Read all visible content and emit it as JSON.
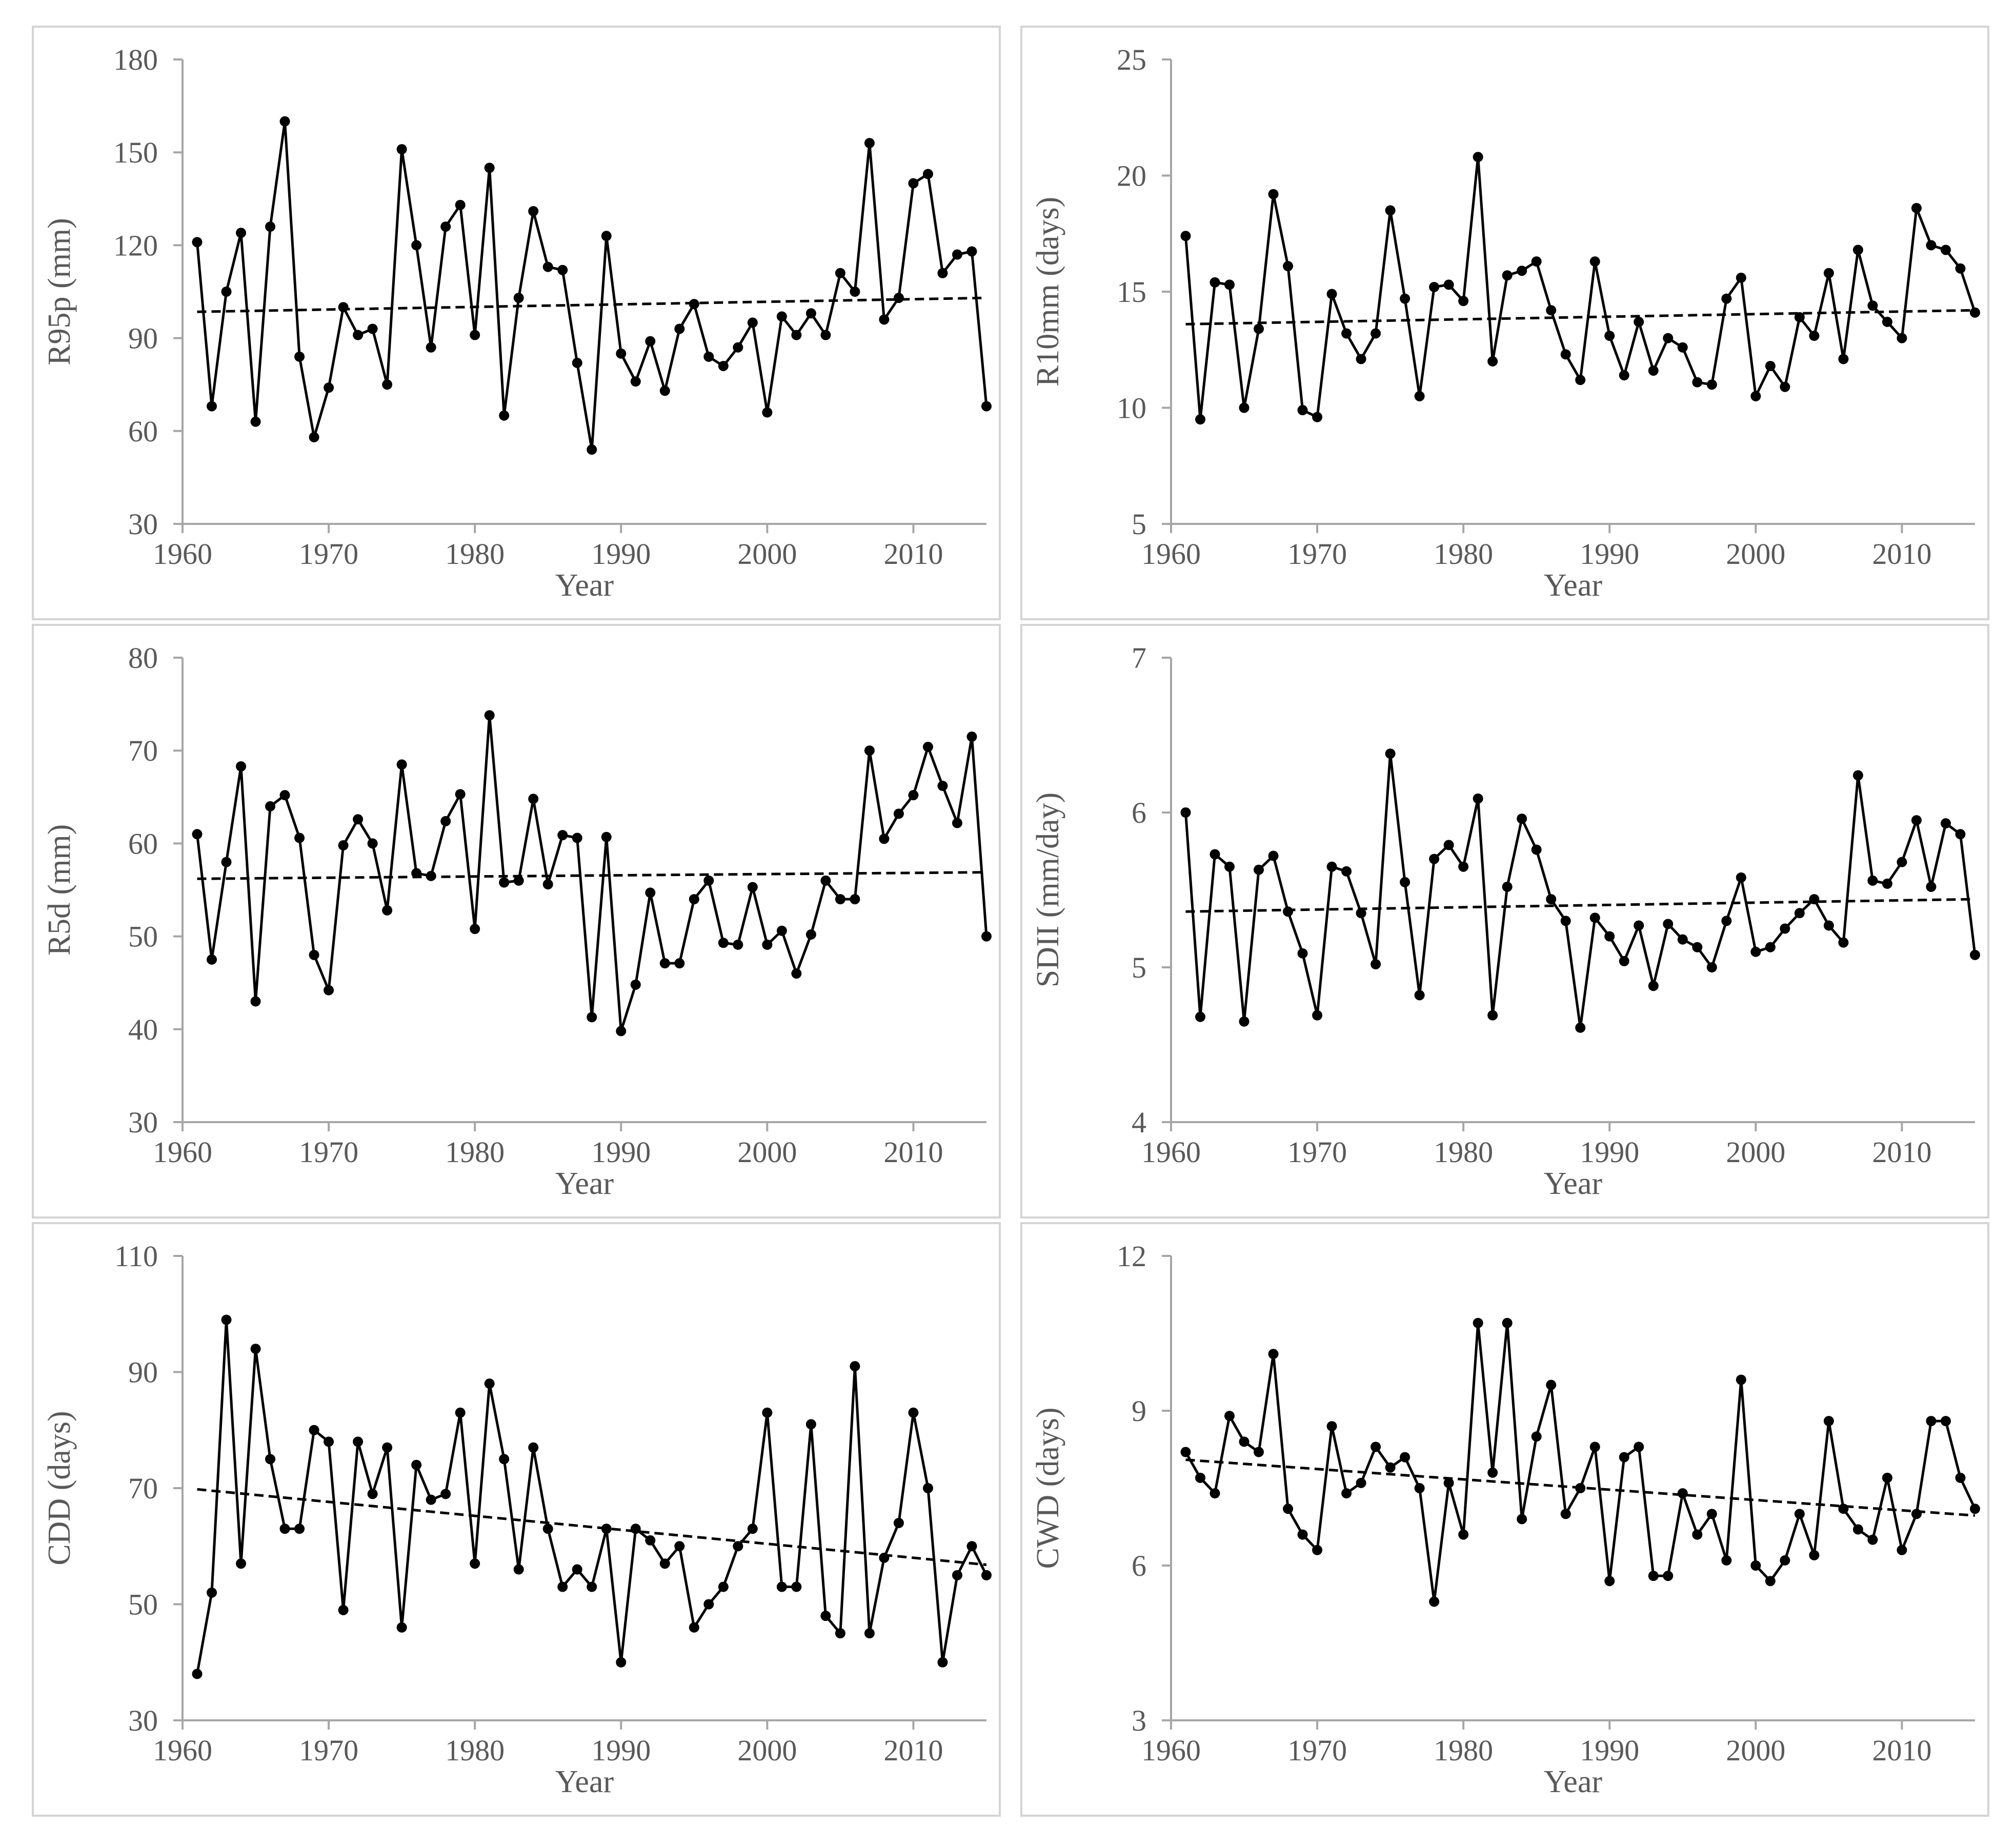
{
  "chart_data": [
    {
      "type": "line",
      "ylabel": "R95p (mm)",
      "xlabel": "Year",
      "xlim": [
        1960,
        2015
      ],
      "ylim": [
        30,
        180
      ],
      "xticks": [
        "1960",
        "1970",
        "1980",
        "1990",
        "2000",
        "2010"
      ],
      "yticks": [
        "30",
        "60",
        "90",
        "120",
        "150",
        "180"
      ],
      "series": [
        {
          "name": "R95p",
          "x": [
            1961,
            1962,
            1963,
            1964,
            1965,
            1966,
            1967,
            1968,
            1969,
            1970,
            1971,
            1972,
            1973,
            1974,
            1975,
            1976,
            1977,
            1978,
            1979,
            1980,
            1981,
            1982,
            1983,
            1984,
            1985,
            1986,
            1987,
            1988,
            1989,
            1990,
            1991,
            1992,
            1993,
            1994,
            1995,
            1996,
            1997,
            1998,
            1999,
            2000,
            2001,
            2002,
            2003,
            2004,
            2005,
            2006,
            2007,
            2008,
            2009,
            2010,
            2011,
            2012,
            2013,
            2014,
            2015
          ],
          "values": [
            121,
            68,
            105,
            124,
            63,
            126,
            160,
            84,
            58,
            74,
            100,
            91,
            93,
            75,
            151,
            120,
            87,
            126,
            133,
            91,
            145,
            65,
            103,
            131,
            113,
            112,
            82,
            54,
            123,
            85,
            76,
            89,
            73,
            93,
            101,
            84,
            81,
            87,
            95,
            66,
            97,
            91,
            98,
            91,
            111,
            105,
            153,
            96,
            103,
            140,
            143,
            111,
            117,
            118,
            68
          ]
        },
        {
          "name": "Trend",
          "style": "dashed",
          "x": [
            1961,
            2015
          ],
          "values": [
            98.5,
            103
          ]
        }
      ]
    },
    {
      "type": "line",
      "ylabel": "R10mm (days)",
      "xlabel": "Year",
      "xlim": [
        1960,
        2015
      ],
      "ylim": [
        5,
        25
      ],
      "xticks": [
        "1960",
        "1970",
        "1980",
        "1990",
        "2000",
        "2010"
      ],
      "yticks": [
        "5",
        "10",
        "15",
        "20",
        "25"
      ],
      "series": [
        {
          "name": "R10mm",
          "x": [
            1961,
            1962,
            1963,
            1964,
            1965,
            1966,
            1967,
            1968,
            1969,
            1970,
            1971,
            1972,
            1973,
            1974,
            1975,
            1976,
            1977,
            1978,
            1979,
            1980,
            1981,
            1982,
            1983,
            1984,
            1985,
            1986,
            1987,
            1988,
            1989,
            1990,
            1991,
            1992,
            1993,
            1994,
            1995,
            1996,
            1997,
            1998,
            1999,
            2000,
            2001,
            2002,
            2003,
            2004,
            2005,
            2006,
            2007,
            2008,
            2009,
            2010,
            2011,
            2012,
            2013,
            2014,
            2015
          ],
          "values": [
            17.4,
            9.5,
            15.4,
            15.3,
            10,
            13.4,
            19.2,
            16.1,
            9.9,
            9.6,
            14.9,
            13.2,
            12.1,
            13.2,
            18.5,
            14.7,
            10.5,
            15.2,
            15.3,
            14.6,
            20.8,
            12,
            15.7,
            15.9,
            16.3,
            14.2,
            12.3,
            11.2,
            16.3,
            13.1,
            11.4,
            13.7,
            11.6,
            13,
            12.6,
            11.1,
            11,
            14.7,
            15.6,
            10.5,
            11.8,
            10.9,
            13.9,
            13.1,
            15.8,
            12.1,
            16.8,
            14.4,
            13.7,
            13,
            18.6,
            17,
            16.8,
            16,
            14.1
          ]
        },
        {
          "name": "Trend",
          "style": "dashed",
          "x": [
            1961,
            2015
          ],
          "values": [
            13.6,
            14.2
          ]
        }
      ]
    },
    {
      "type": "line",
      "ylabel": "R5d (mm)",
      "xlabel": "Year",
      "xlim": [
        1960,
        2015
      ],
      "ylim": [
        30,
        80
      ],
      "xticks": [
        "1960",
        "1970",
        "1980",
        "1990",
        "2000",
        "2010"
      ],
      "yticks": [
        "30",
        "40",
        "50",
        "60",
        "70",
        "80"
      ],
      "series": [
        {
          "name": "R5d",
          "x": [
            1961,
            1962,
            1963,
            1964,
            1965,
            1966,
            1967,
            1968,
            1969,
            1970,
            1971,
            1972,
            1973,
            1974,
            1975,
            1976,
            1977,
            1978,
            1979,
            1980,
            1981,
            1982,
            1983,
            1984,
            1985,
            1986,
            1987,
            1988,
            1989,
            1990,
            1991,
            1992,
            1993,
            1994,
            1995,
            1996,
            1997,
            1998,
            1999,
            2000,
            2001,
            2002,
            2003,
            2004,
            2005,
            2006,
            2007,
            2008,
            2009,
            2010,
            2011,
            2012,
            2013,
            2014,
            2015
          ],
          "values": [
            61,
            47.5,
            58,
            68.3,
            43,
            64,
            65.2,
            60.6,
            48,
            44.2,
            59.8,
            62.6,
            60,
            52.8,
            68.5,
            56.8,
            56.5,
            62.4,
            65.3,
            50.8,
            73.8,
            55.8,
            56,
            64.8,
            55.6,
            60.9,
            60.6,
            41.3,
            60.7,
            39.8,
            44.8,
            54.7,
            47.1,
            47.1,
            54,
            56,
            49.3,
            49.1,
            55.3,
            49.1,
            50.6,
            46,
            50.2,
            56,
            54,
            54,
            70,
            60.5,
            63.2,
            65.2,
            70.4,
            66.2,
            62.2,
            71.5,
            50
          ]
        },
        {
          "name": "Trend",
          "style": "dashed",
          "x": [
            1961,
            2015
          ],
          "values": [
            56.2,
            56.9
          ]
        }
      ]
    },
    {
      "type": "line",
      "ylabel": "SDII (mm/day)",
      "xlabel": "Year",
      "xlim": [
        1960,
        2015
      ],
      "ylim": [
        4,
        7
      ],
      "xticks": [
        "1960",
        "1970",
        "1980",
        "1990",
        "2000",
        "2010"
      ],
      "yticks": [
        "4",
        "5",
        "6",
        "7"
      ],
      "series": [
        {
          "name": "SDII",
          "x": [
            1961,
            1962,
            1963,
            1964,
            1965,
            1966,
            1967,
            1968,
            1969,
            1970,
            1971,
            1972,
            1973,
            1974,
            1975,
            1976,
            1977,
            1978,
            1979,
            1980,
            1981,
            1982,
            1983,
            1984,
            1985,
            1986,
            1987,
            1988,
            1989,
            1990,
            1991,
            1992,
            1993,
            1994,
            1995,
            1996,
            1997,
            1998,
            1999,
            2000,
            2001,
            2002,
            2003,
            2004,
            2005,
            2006,
            2007,
            2008,
            2009,
            2010,
            2011,
            2012,
            2013,
            2014,
            2015
          ],
          "values": [
            6,
            4.68,
            5.73,
            5.65,
            4.65,
            5.63,
            5.72,
            5.36,
            5.09,
            4.69,
            5.65,
            5.62,
            5.35,
            5.02,
            6.38,
            5.55,
            4.82,
            5.7,
            5.79,
            5.65,
            6.09,
            4.69,
            5.52,
            5.96,
            5.76,
            5.44,
            5.3,
            4.61,
            5.32,
            5.2,
            5.04,
            5.27,
            4.88,
            5.28,
            5.18,
            5.13,
            5,
            5.3,
            5.58,
            5.1,
            5.13,
            5.25,
            5.35,
            5.44,
            5.27,
            5.16,
            6.24,
            5.56,
            5.54,
            5.68,
            5.95,
            5.52,
            5.93,
            5.86,
            5.08
          ]
        },
        {
          "name": "Trend",
          "style": "dashed",
          "x": [
            1961,
            2015
          ],
          "values": [
            5.36,
            5.44
          ]
        }
      ]
    },
    {
      "type": "line",
      "ylabel": "CDD (days)",
      "xlabel": "Year",
      "xlim": [
        1960,
        2015
      ],
      "ylim": [
        30,
        110
      ],
      "xticks": [
        "1960",
        "1970",
        "1980",
        "1990",
        "2000",
        "2010"
      ],
      "yticks": [
        "30",
        "50",
        "70",
        "90",
        "110"
      ],
      "series": [
        {
          "name": "CDD",
          "x": [
            1961,
            1962,
            1963,
            1964,
            1965,
            1966,
            1967,
            1968,
            1969,
            1970,
            1971,
            1972,
            1973,
            1974,
            1975,
            1976,
            1977,
            1978,
            1979,
            1980,
            1981,
            1982,
            1983,
            1984,
            1985,
            1986,
            1987,
            1988,
            1989,
            1990,
            1991,
            1992,
            1993,
            1994,
            1995,
            1996,
            1997,
            1998,
            1999,
            2000,
            2001,
            2002,
            2003,
            2004,
            2005,
            2006,
            2007,
            2008,
            2009,
            2010,
            2011,
            2012,
            2013,
            2014,
            2015
          ],
          "values": [
            38,
            52,
            99,
            57,
            94,
            75,
            63,
            63,
            80,
            78,
            49,
            78,
            69,
            77,
            46,
            74,
            68,
            69,
            83,
            57,
            88,
            75,
            56,
            77,
            63,
            53,
            56,
            53,
            63,
            40,
            63,
            61,
            57,
            60,
            46,
            50,
            53,
            60,
            63,
            83,
            53,
            53,
            81,
            48,
            45,
            91,
            45,
            58,
            64,
            83,
            70,
            40,
            55,
            60,
            55
          ]
        },
        {
          "name": "Trend",
          "style": "dashed",
          "x": [
            1961,
            2015
          ],
          "values": [
            69.8,
            56.8
          ]
        }
      ]
    },
    {
      "type": "line",
      "ylabel": "CWD (days)",
      "xlabel": "Year",
      "xlim": [
        1960,
        2015
      ],
      "ylim": [
        3,
        12
      ],
      "xticks": [
        "1960",
        "1970",
        "1980",
        "1990",
        "2000",
        "2010"
      ],
      "yticks": [
        "3",
        "6",
        "9",
        "12"
      ],
      "series": [
        {
          "name": "CWD",
          "x": [
            1961,
            1962,
            1963,
            1964,
            1965,
            1966,
            1967,
            1968,
            1969,
            1970,
            1971,
            1972,
            1973,
            1974,
            1975,
            1976,
            1977,
            1978,
            1979,
            1980,
            1981,
            1982,
            1983,
            1984,
            1985,
            1986,
            1987,
            1988,
            1989,
            1990,
            1991,
            1992,
            1993,
            1994,
            1995,
            1996,
            1997,
            1998,
            1999,
            2000,
            2001,
            2002,
            2003,
            2004,
            2005,
            2006,
            2007,
            2008,
            2009,
            2010,
            2011,
            2012,
            2013,
            2014,
            2015
          ],
          "values": [
            8.2,
            7.7,
            7.4,
            8.9,
            8.4,
            8.2,
            10.1,
            7.1,
            6.6,
            6.3,
            8.7,
            7.4,
            7.6,
            8.3,
            7.9,
            8.1,
            7.5,
            5.3,
            7.6,
            6.6,
            10.7,
            7.8,
            10.7,
            6.9,
            8.5,
            9.5,
            7.0,
            7.5,
            8.3,
            5.7,
            8.1,
            8.3,
            5.8,
            5.8,
            7.4,
            6.6,
            7.0,
            6.1,
            9.6,
            6.0,
            5.7,
            6.1,
            7.0,
            6.2,
            8.8,
            7.1,
            6.7,
            6.5,
            7.7,
            6.3,
            7.0,
            8.8,
            8.8,
            7.7,
            7.1
          ]
        },
        {
          "name": "Trend",
          "style": "dashed",
          "x": [
            1961,
            2015
          ],
          "values": [
            8.05,
            6.97
          ]
        }
      ]
    }
  ]
}
